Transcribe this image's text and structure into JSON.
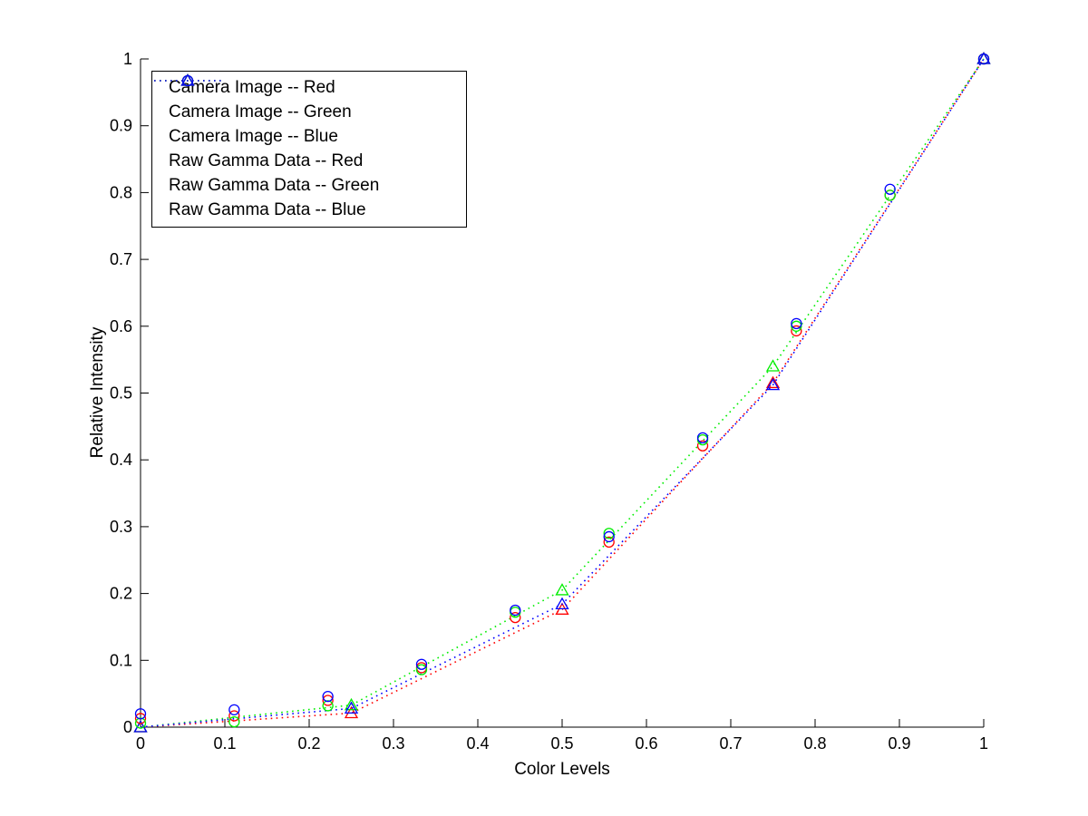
{
  "chart_data": {
    "type": "scatter",
    "title": "",
    "xlabel": "Color Levels",
    "ylabel": "Relative Intensity",
    "xlim": [
      0,
      1
    ],
    "ylim": [
      0,
      1
    ],
    "grid": false,
    "legend_position": "top-left",
    "axis_color": "#000000",
    "background_color": "#ffffff",
    "xticks": {
      "values": [
        0,
        0.1,
        0.2,
        0.3,
        0.4,
        0.5,
        0.6,
        0.7,
        0.8,
        0.9,
        1
      ],
      "labels": [
        "0",
        "0.1",
        "0.2",
        "0.3",
        "0.4",
        "0.5",
        "0.6",
        "0.7",
        "0.8",
        "0.9",
        "1"
      ]
    },
    "yticks": {
      "values": [
        0,
        0.1,
        0.2,
        0.3,
        0.4,
        0.5,
        0.6,
        0.7,
        0.8,
        0.9,
        1
      ],
      "labels": [
        "0",
        "0.1",
        "0.2",
        "0.3",
        "0.4",
        "0.5",
        "0.6",
        "0.7",
        "0.8",
        "0.9",
        "1"
      ]
    },
    "series": [
      {
        "id": "camera-image-red",
        "name": "Camera Image -- Red",
        "color": "#ff0000",
        "marker": "triangle",
        "line": "dotted",
        "x": [
          0,
          0.25,
          0.5,
          0.75,
          1
        ],
        "y": [
          0,
          0.021,
          0.176,
          0.515,
          1
        ]
      },
      {
        "id": "camera-image-green",
        "name": "Camera Image -- Green",
        "color": "#00ee00",
        "marker": "triangle",
        "line": "dotted",
        "x": [
          0,
          0.25,
          0.5,
          0.75,
          1
        ],
        "y": [
          0,
          0.033,
          0.205,
          0.54,
          1
        ]
      },
      {
        "id": "camera-image-blue",
        "name": "Camera Image -- Blue",
        "color": "#0000ff",
        "marker": "triangle",
        "line": "dotted",
        "x": [
          0,
          0.25,
          0.5,
          0.75,
          1
        ],
        "y": [
          0,
          0.028,
          0.184,
          0.512,
          1
        ]
      },
      {
        "id": "raw-gamma-red",
        "name": "Raw Gamma Data -- Red",
        "color": "#ff0000",
        "marker": "circle",
        "line": "none",
        "x": [
          0,
          0.1111,
          0.2222,
          0.3333,
          0.4444,
          0.5556,
          0.6667,
          0.7778,
          0.8889,
          1
        ],
        "y": [
          0.013,
          0.017,
          0.04,
          0.089,
          0.164,
          0.277,
          0.421,
          0.593,
          0.796,
          1
        ]
      },
      {
        "id": "raw-gamma-green",
        "name": "Raw Gamma Data -- Green",
        "color": "#00ee00",
        "marker": "circle",
        "line": "none",
        "x": [
          0,
          0.1111,
          0.2222,
          0.3333,
          0.4444,
          0.5556,
          0.6667,
          0.7778,
          0.8889,
          1
        ],
        "y": [
          0.006,
          0.008,
          0.032,
          0.086,
          0.172,
          0.29,
          0.43,
          0.6,
          0.796,
          1
        ]
      },
      {
        "id": "raw-gamma-blue",
        "name": "Raw Gamma Data -- Blue",
        "color": "#0000ff",
        "marker": "circle",
        "line": "none",
        "x": [
          0,
          0.1111,
          0.2222,
          0.3333,
          0.4444,
          0.5556,
          0.6667,
          0.7778,
          0.8889,
          1
        ],
        "y": [
          0.02,
          0.026,
          0.046,
          0.094,
          0.175,
          0.285,
          0.433,
          0.604,
          0.805,
          1
        ]
      }
    ]
  }
}
